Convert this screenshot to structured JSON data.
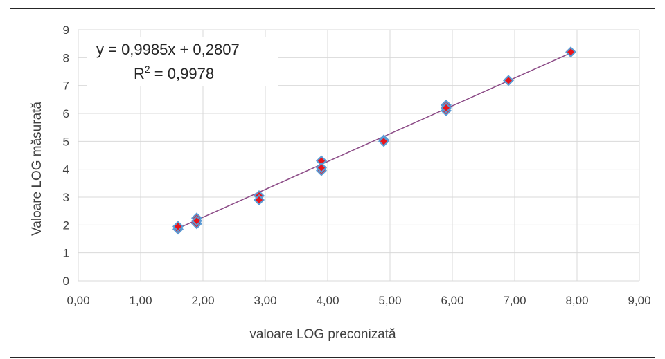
{
  "chart_data": {
    "type": "scatter",
    "title": "",
    "xlabel": "valoare LOG preconizată",
    "ylabel": "Valoare LOG măsurată",
    "xlim": [
      0,
      9
    ],
    "ylim": [
      0,
      9
    ],
    "x_ticks": [
      "0,00",
      "1,00",
      "2,00",
      "3,00",
      "4,00",
      "5,00",
      "6,00",
      "7,00",
      "8,00",
      "9,00"
    ],
    "y_ticks": [
      "0",
      "1",
      "2",
      "3",
      "4",
      "5",
      "6",
      "7",
      "8",
      "9"
    ],
    "grid": true,
    "legend": "none",
    "trendline": {
      "type": "linear",
      "slope": 0.9985,
      "intercept": 0.2807,
      "equation_label": "y = 0,9985x + 0,2807",
      "r2_prefix": "R",
      "r2_sup": "2",
      "r2_value": " = 0,9978",
      "color": "#8B4A86"
    },
    "series": [
      {
        "marker_outer_color": "#5B9BD5",
        "marker_inner_color": "#E8141B",
        "points": [
          {
            "x": 1.6,
            "y": 1.85
          },
          {
            "x": 1.6,
            "y": 1.95
          },
          {
            "x": 1.9,
            "y": 2.05
          },
          {
            "x": 1.9,
            "y": 2.25
          },
          {
            "x": 1.9,
            "y": 2.15
          },
          {
            "x": 2.9,
            "y": 3.05
          },
          {
            "x": 2.9,
            "y": 2.9
          },
          {
            "x": 3.9,
            "y": 4.3
          },
          {
            "x": 3.9,
            "y": 3.95
          },
          {
            "x": 3.9,
            "y": 4.05
          },
          {
            "x": 4.9,
            "y": 5.05
          },
          {
            "x": 4.9,
            "y": 5.0
          },
          {
            "x": 5.9,
            "y": 6.3
          },
          {
            "x": 5.9,
            "y": 6.1
          },
          {
            "x": 5.9,
            "y": 6.2
          },
          {
            "x": 6.9,
            "y": 7.18
          },
          {
            "x": 7.9,
            "y": 8.2
          }
        ]
      }
    ]
  }
}
